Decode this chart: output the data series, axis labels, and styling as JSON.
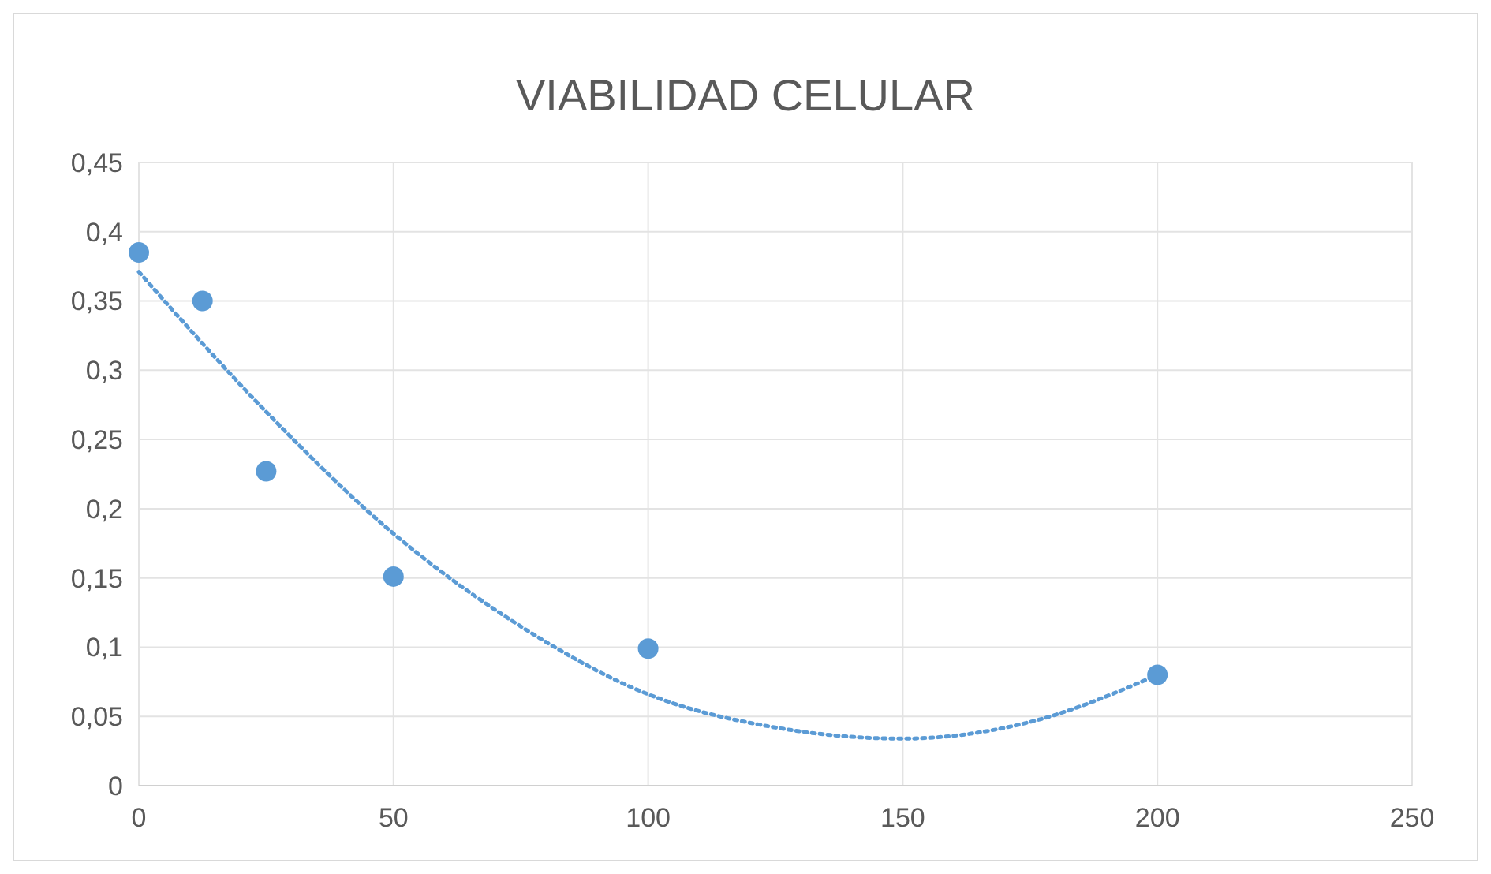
{
  "chart_data": {
    "type": "scatter",
    "title": "VIABILIDAD CELULAR",
    "xlim": [
      0,
      250
    ],
    "xticks": [
      0,
      50,
      100,
      150,
      200,
      250
    ],
    "ylim": [
      0,
      0.45
    ],
    "yticks": [
      0,
      {
        "value": 0.05,
        "label": "0,05"
      },
      {
        "value": 0.1,
        "label": "0,1"
      },
      {
        "value": 0.15,
        "label": "0,15"
      },
      {
        "value": 0.2,
        "label": "0,2"
      },
      {
        "value": 0.25,
        "label": "0,25"
      },
      {
        "value": 0.3,
        "label": "0,3"
      },
      {
        "value": 0.35,
        "label": "0,35"
      },
      {
        "value": 0.4,
        "label": "0,4"
      },
      {
        "value": 0.45,
        "label": "0,45"
      }
    ],
    "grid": true,
    "marker": "circle",
    "series": [
      {
        "color": "#5b9bd5",
        "x": [
          0,
          12.5,
          25,
          50,
          100,
          200
        ],
        "values": [
          0.385,
          0.35,
          0.227,
          0.151,
          0.099,
          0.08
        ]
      },
      {
        "type": "line",
        "color": "#5b9bd5",
        "line_style": "dotted",
        "marker": "none",
        "x": [
          0,
          25,
          50,
          75,
          100,
          125,
          150,
          175,
          200
        ],
        "values": [
          0.371,
          0.27,
          0.182,
          0.115,
          0.066,
          0.042,
          0.034,
          0.046,
          0.08
        ]
      }
    ]
  }
}
